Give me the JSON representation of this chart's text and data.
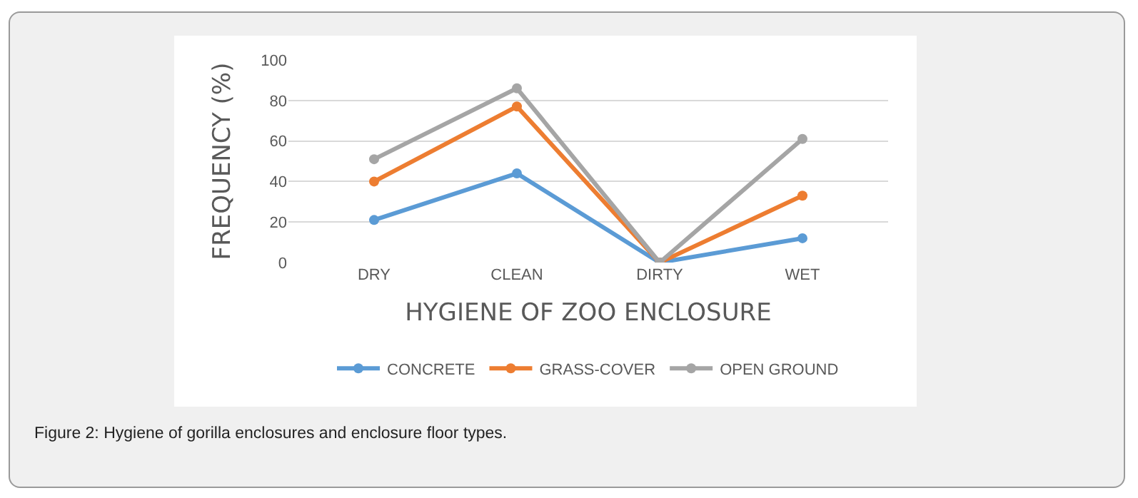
{
  "chart_data": {
    "type": "line",
    "xlabel": "HYGIENE OF ZOO ENCLOSURE",
    "ylabel": "FREQUENCY (%)",
    "categories": [
      "DRY",
      "CLEAN",
      "DIRTY",
      "WET"
    ],
    "series": [
      {
        "name": "CONCRETE",
        "color": "#5b9bd5",
        "values": [
          21,
          44,
          0,
          12
        ]
      },
      {
        "name": "GRASS-COVER",
        "color": "#ed7d31",
        "values": [
          40,
          77,
          0,
          33
        ]
      },
      {
        "name": "OPEN GROUND",
        "color": "#a5a5a5",
        "values": [
          51,
          86,
          0,
          61
        ]
      }
    ],
    "ylim": [
      0,
      100
    ],
    "yticks": [
      0,
      20,
      40,
      60,
      80,
      100
    ],
    "grid": "y",
    "legend": "bottom",
    "marker": "circle",
    "line_style": "solid",
    "annotations": [
      "Figure 2: Hygiene of gorilla enclosures and enclosure floor types."
    ]
  }
}
